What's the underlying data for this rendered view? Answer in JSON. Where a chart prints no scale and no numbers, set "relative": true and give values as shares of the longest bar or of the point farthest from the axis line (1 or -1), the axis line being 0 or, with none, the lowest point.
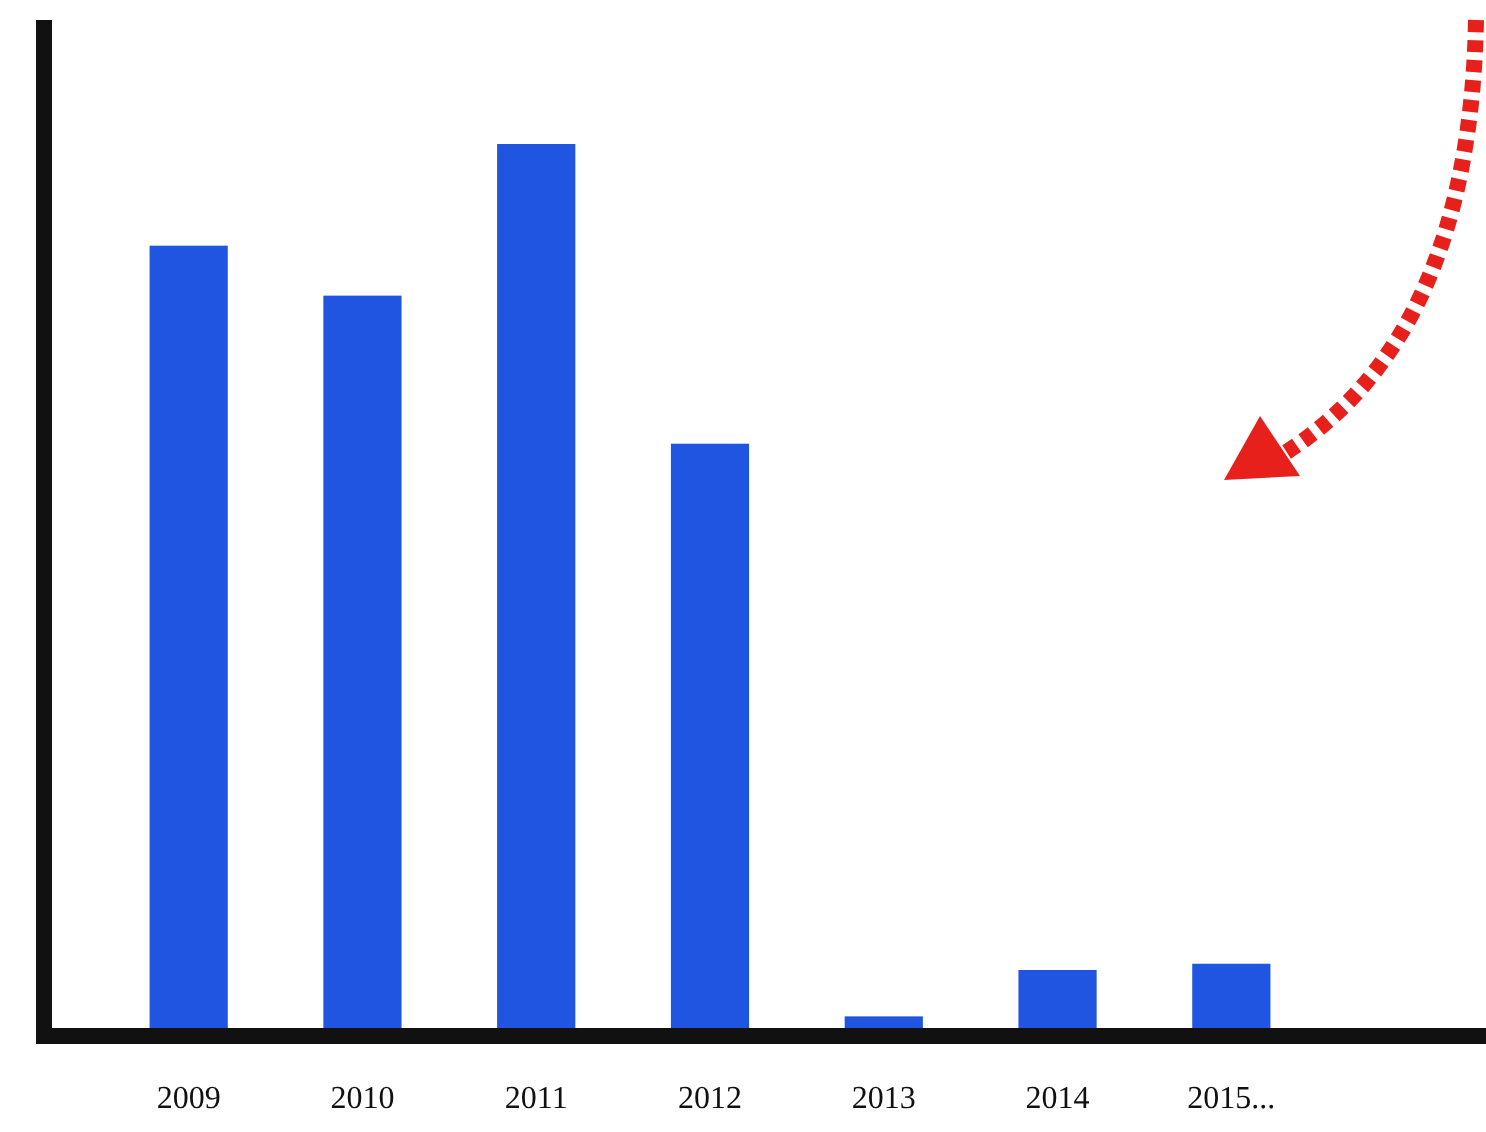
{
  "chart_data": {
    "type": "bar",
    "relative": true,
    "categories": [
      "2009",
      "2010",
      "2011",
      "2012",
      "2013",
      "2014",
      "2015..."
    ],
    "values": [
      0.886,
      0.83,
      1,
      0.664,
      0.022,
      0.074,
      0.081
    ],
    "color": "#1f55e0"
  }
}
